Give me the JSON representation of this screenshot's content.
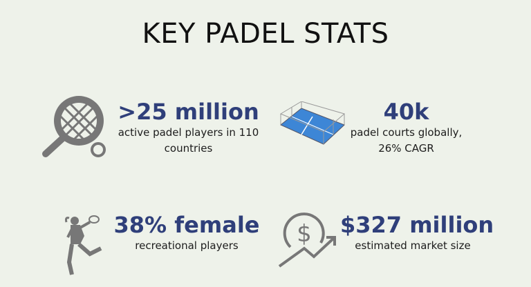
{
  "title": "KEY PADEL STATS",
  "colors": {
    "background": "#eef2ea",
    "accent": "#2f3f7a",
    "icon": "#777777",
    "court": "#3d86d6"
  },
  "stats": [
    {
      "value": ">25 million",
      "desc_line1": "active padel players in 110",
      "desc_line2": "countries",
      "icon": "padel-racket-icon"
    },
    {
      "value": "40k",
      "desc_line1": "padel courts globally,",
      "desc_line2": "26% CAGR",
      "icon": "padel-court-icon"
    },
    {
      "value": "38% female",
      "desc_line1": "recreational players",
      "icon": "female-player-icon"
    },
    {
      "value": "$327 million",
      "desc_line1": "estimated market size",
      "icon": "dollar-growth-icon"
    }
  ]
}
